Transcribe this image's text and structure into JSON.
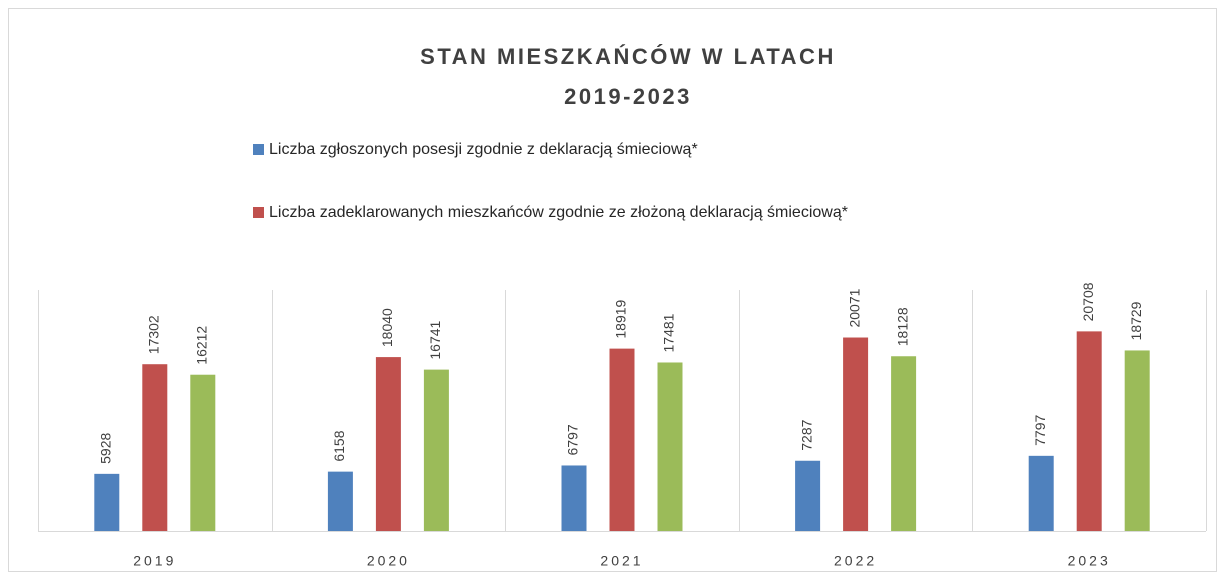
{
  "chart_data": {
    "type": "bar",
    "title": [
      "STAN MIESZKAŃCÓW W LATACH",
      "2019-2023"
    ],
    "categories": [
      "2019",
      "2020",
      "2021",
      "2022",
      "2023"
    ],
    "series": [
      {
        "name": "Liczba zgłoszonych posesji zgodnie z deklaracją śmieciową*",
        "color": "#4f81bd",
        "values": [
          5928,
          6158,
          6797,
          7287,
          7797
        ]
      },
      {
        "name": "Liczba zadeklarowanych mieszkańców zgodnie ze złożoną deklaracją śmieciową*",
        "color": "#c0504d",
        "values": [
          17302,
          18040,
          18919,
          20071,
          20708
        ]
      },
      {
        "color": "#9bbb59",
        "values": [
          16212,
          16741,
          17481,
          18128,
          18729
        ]
      }
    ],
    "ylim": [
      0,
      25000
    ]
  }
}
